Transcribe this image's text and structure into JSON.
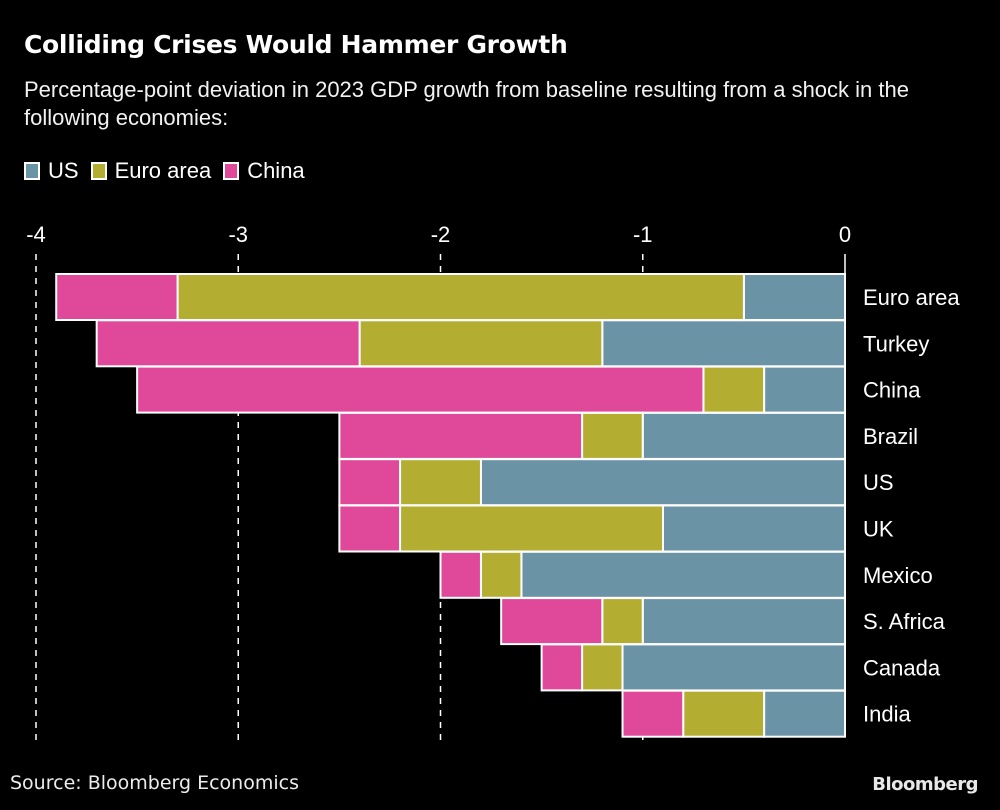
{
  "chart_data": {
    "type": "bar",
    "orientation": "horizontal",
    "stacked": true,
    "title": "Colliding Crises Would Hammer Growth",
    "subtitle": "Percentage-point deviation in 2023 GDP growth from baseline resulting from a shock in the following economies:",
    "xlabel": "",
    "ylabel": "",
    "xlim": [
      -4,
      0
    ],
    "x_ticks": [
      "-4",
      "-3",
      "-2",
      "-1",
      "0"
    ],
    "x_tick_values": [
      -4,
      -3,
      -2,
      -1,
      0
    ],
    "grid": "vertical dashed",
    "legend_position": "top-left",
    "categories": [
      "Euro area",
      "Turkey",
      "China",
      "Brazil",
      "US",
      "UK",
      "Mexico",
      "S. Africa",
      "Canada",
      "India"
    ],
    "series": [
      {
        "name": "US",
        "color": "#6b93a6",
        "values": [
          -0.5,
          -1.2,
          -0.4,
          -1.0,
          -1.8,
          -0.9,
          -1.6,
          -1.0,
          -1.1,
          -0.4
        ]
      },
      {
        "name": "Euro area",
        "color": "#b3ad32",
        "values": [
          -2.8,
          -1.2,
          -0.3,
          -0.3,
          -0.4,
          -1.3,
          -0.2,
          -0.2,
          -0.2,
          -0.4
        ]
      },
      {
        "name": "China",
        "color": "#e0489a",
        "values": [
          -0.6,
          -1.3,
          -2.8,
          -1.2,
          -0.3,
          -0.3,
          -0.2,
          -0.5,
          -0.2,
          -0.3
        ]
      }
    ],
    "source": "Source: Bloomberg Economics"
  },
  "footer": {
    "source": "Source: Bloomberg Economics",
    "brand": "Bloomberg"
  }
}
